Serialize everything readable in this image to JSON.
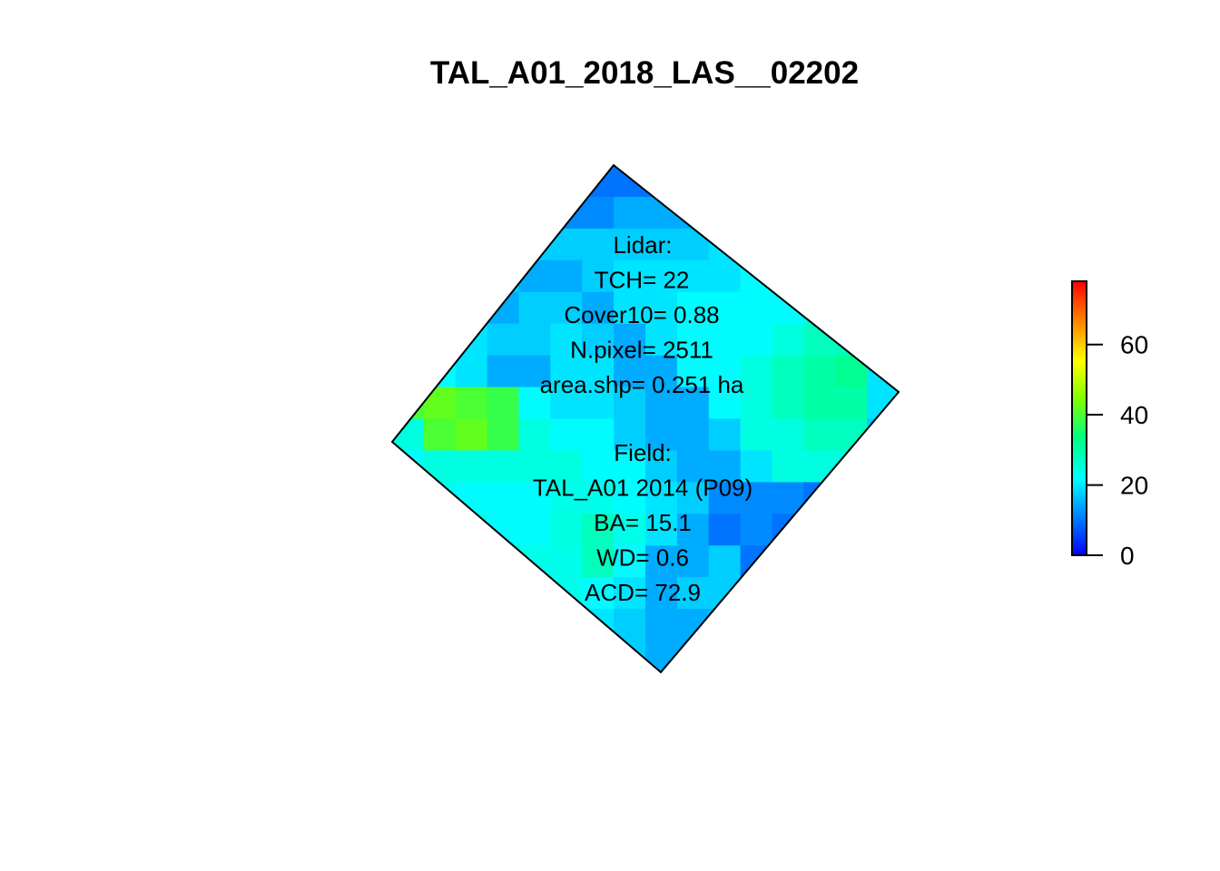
{
  "chart_data": {
    "type": "heatmap",
    "title": "TAL_A01_2018_LAS__02202",
    "xlabel": "",
    "ylabel": "",
    "grid": false,
    "colorbar": {
      "placement": "right",
      "range": [
        0,
        78
      ],
      "ticks": [
        0,
        20,
        40,
        60
      ],
      "tick_labels": [
        "0",
        "20",
        "40",
        "60"
      ],
      "colormap": [
        "#0000FF",
        "#0080FF",
        "#00FFFF",
        "#00FF80",
        "#80FF00",
        "#FFFF00",
        "#FF8000",
        "#FF0000"
      ]
    },
    "annotations": {
      "lidar": [
        "Lidar:",
        "TCH= 22",
        "Cover10= 0.88",
        "N.pixel= 2511",
        "area.shp= 0.251 ha"
      ],
      "field": [
        "Field:",
        "TAL_A01 2014 (P09)",
        "BA= 15.1",
        "WD= 0.6",
        "ACD= 72.9"
      ]
    },
    "values": [
      [
        12,
        12,
        10,
        10,
        10,
        12,
        10,
        10,
        10,
        12,
        10,
        10,
        10,
        10,
        12,
        12
      ],
      [
        12,
        12,
        10,
        12,
        12,
        12,
        12,
        15,
        15,
        15,
        15,
        12,
        12,
        12,
        12,
        12
      ],
      [
        12,
        12,
        15,
        15,
        18,
        18,
        18,
        18,
        18,
        18,
        20,
        20,
        20,
        20,
        20,
        12
      ],
      [
        45,
        45,
        18,
        18,
        15,
        15,
        18,
        20,
        20,
        20,
        20,
        22,
        22,
        24,
        24,
        15
      ],
      [
        42,
        42,
        22,
        15,
        18,
        18,
        15,
        20,
        20,
        22,
        22,
        22,
        22,
        25,
        25,
        18
      ],
      [
        25,
        22,
        20,
        18,
        18,
        20,
        18,
        15,
        20,
        22,
        22,
        22,
        25,
        28,
        28,
        18
      ],
      [
        25,
        22,
        20,
        15,
        15,
        20,
        20,
        15,
        15,
        22,
        22,
        25,
        28,
        30,
        32,
        20
      ],
      [
        40,
        42,
        40,
        38,
        22,
        20,
        20,
        18,
        15,
        15,
        22,
        25,
        28,
        30,
        30,
        20
      ],
      [
        25,
        40,
        42,
        38,
        25,
        22,
        22,
        18,
        15,
        15,
        18,
        25,
        25,
        28,
        28,
        18
      ],
      [
        22,
        25,
        25,
        25,
        25,
        25,
        22,
        22,
        18,
        15,
        15,
        20,
        25,
        25,
        25,
        15
      ],
      [
        24,
        24,
        22,
        22,
        22,
        24,
        24,
        22,
        20,
        18,
        12,
        12,
        12,
        10,
        12,
        8
      ],
      [
        32,
        30,
        25,
        22,
        22,
        25,
        28,
        24,
        20,
        15,
        10,
        12,
        10,
        10,
        10,
        8
      ],
      [
        32,
        32,
        32,
        28,
        24,
        24,
        28,
        22,
        15,
        15,
        18,
        10,
        8,
        12,
        10,
        8
      ],
      [
        30,
        32,
        32,
        28,
        25,
        24,
        22,
        20,
        15,
        18,
        18,
        8,
        8,
        10,
        10,
        8
      ],
      [
        30,
        30,
        28,
        25,
        22,
        20,
        20,
        18,
        15,
        15,
        15,
        15,
        15,
        18,
        20,
        15
      ],
      [
        30,
        28,
        28,
        22,
        20,
        18,
        18,
        18,
        15,
        15,
        15,
        15,
        15,
        15,
        15,
        12
      ]
    ]
  }
}
